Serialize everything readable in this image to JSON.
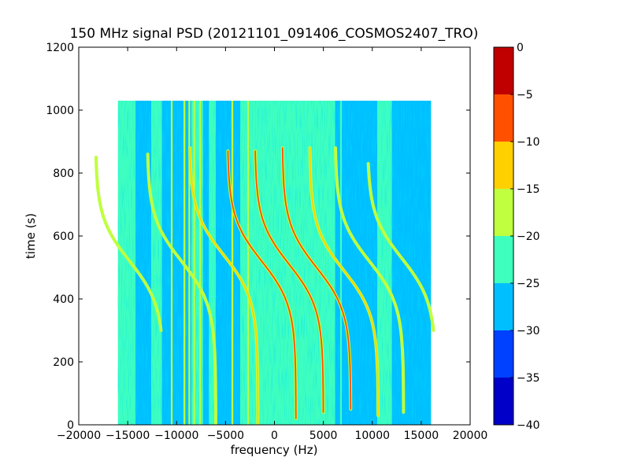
{
  "chart_data": {
    "type": "heatmap",
    "title": "150 MHz signal PSD (20121101_091406_COSMOS2407_TRO)",
    "xlabel": "frequency (Hz)",
    "ylabel": "time (s)",
    "xlim": [
      -20000,
      20000
    ],
    "ylim": [
      0,
      1200
    ],
    "xticks": [
      -20000,
      -15000,
      -10000,
      -5000,
      0,
      5000,
      10000,
      15000,
      20000
    ],
    "xtick_labels": [
      "−20000",
      "−15000",
      "−10000",
      "−5000",
      "0",
      "5000",
      "10000",
      "15000",
      "20000"
    ],
    "yticks": [
      0,
      200,
      400,
      600,
      800,
      1000,
      1200
    ],
    "ytick_labels": [
      "0",
      "200",
      "400",
      "600",
      "800",
      "1000",
      "1200"
    ],
    "data_extent": {
      "x": [
        -16000,
        16000
      ],
      "y": [
        0,
        1030
      ]
    },
    "background_level_db": -22,
    "colorbar": {
      "range": [
        -40,
        0
      ],
      "ticks": [
        0,
        -5,
        -10,
        -15,
        -20,
        -25,
        -30,
        -35,
        -40
      ],
      "tick_labels": [
        "0",
        "−5",
        "−10",
        "−15",
        "−20",
        "−25",
        "−30",
        "−35",
        "−40"
      ],
      "levels": [
        {
          "from": -40,
          "to": -35,
          "color": "#0000c8"
        },
        {
          "from": -35,
          "to": -30,
          "color": "#0040ff"
        },
        {
          "from": -30,
          "to": -25,
          "color": "#00bfff"
        },
        {
          "from": -25,
          "to": -20,
          "color": "#3fffbf"
        },
        {
          "from": -20,
          "to": -15,
          "color": "#bfff3f"
        },
        {
          "from": -15,
          "to": -10,
          "color": "#ffd000"
        },
        {
          "from": -10,
          "to": -5,
          "color": "#ff5000"
        },
        {
          "from": -5,
          "to": 0,
          "color": "#c00000"
        }
      ]
    },
    "low_power_bands": [
      {
        "x": [
          -14200,
          -12600
        ],
        "level_db": -27
      },
      {
        "x": [
          -11500,
          -8500
        ],
        "level_db": -27
      },
      {
        "x": [
          -7300,
          -6700
        ],
        "level_db": -27
      },
      {
        "x": [
          -6000,
          -3500
        ],
        "level_db": -27
      },
      {
        "x": [
          6200,
          10500
        ],
        "level_db": -27
      },
      {
        "x": [
          12000,
          16000
        ],
        "level_db": -27
      }
    ],
    "constant_tones": [
      {
        "x": -10500,
        "level_db": -18
      },
      {
        "x": -9200,
        "level_db": -17
      },
      {
        "x": -8700,
        "level_db": -17
      },
      {
        "x": -8200,
        "level_db": -18
      },
      {
        "x": -7600,
        "level_db": -17
      },
      {
        "x": -4300,
        "level_db": -16
      },
      {
        "x": -2700,
        "level_db": -16
      },
      {
        "x": 6800,
        "level_db": -22
      },
      {
        "x": 10700,
        "level_db": -22
      }
    ],
    "doppler_tracks": [
      {
        "f0": -14800,
        "t0": 520,
        "half_span": 3500,
        "t_start": 300,
        "t_end": 850,
        "level_db": -17
      },
      {
        "f0": -9500,
        "t0": 520,
        "half_span": 3500,
        "t_start": 0,
        "t_end": 860,
        "level_db": -17
      },
      {
        "f0": -5200,
        "t0": 540,
        "half_span": 3500,
        "t_start": 0,
        "t_end": 880,
        "level_db": -13
      },
      {
        "f0": -1300,
        "t0": 520,
        "half_span": 3500,
        "t_start": 20,
        "t_end": 870,
        "level_db": -9
      },
      {
        "f0": 1500,
        "t0": 510,
        "half_span": 3500,
        "t_start": 40,
        "t_end": 870,
        "level_db": -7
      },
      {
        "f0": 4300,
        "t0": 500,
        "half_span": 3500,
        "t_start": 50,
        "t_end": 880,
        "level_db": -7
      },
      {
        "f0": 7100,
        "t0": 490,
        "half_span": 3500,
        "t_start": 30,
        "t_end": 880,
        "level_db": -11
      },
      {
        "f0": 9700,
        "t0": 520,
        "half_span": 3500,
        "t_start": 40,
        "t_end": 880,
        "level_db": -17
      },
      {
        "f0": 13000,
        "t0": 530,
        "half_span": 3500,
        "t_start": 300,
        "t_end": 830,
        "level_db": -18
      }
    ]
  }
}
